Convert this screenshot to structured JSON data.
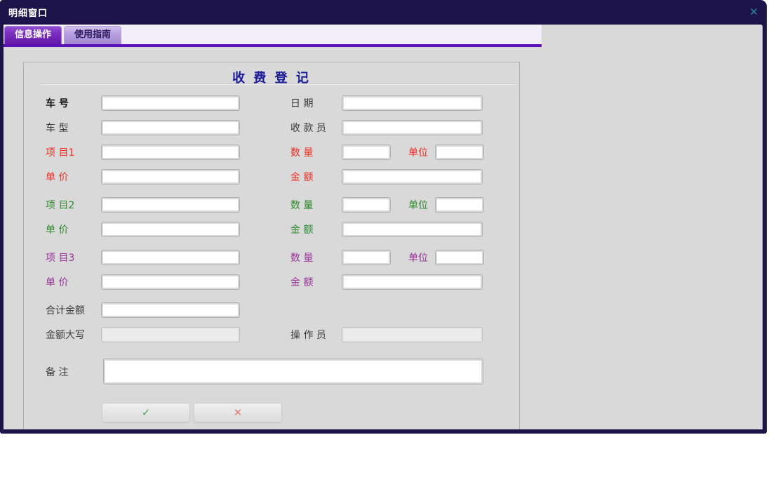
{
  "window": {
    "title": "明细窗口",
    "close_glyph": "✕"
  },
  "tabs": [
    {
      "label": "信息操作",
      "active": true
    },
    {
      "label": "使用指南",
      "active": false
    }
  ],
  "form": {
    "title": "收 费 登 记",
    "vehicle_no_label": "车 号",
    "date_label": "日 期",
    "vehicle_type_label": "车 型",
    "cashier_label": "收 款 员",
    "items": [
      {
        "label": "项 目1",
        "qty_label": "数 量",
        "unit_label": "单位",
        "price_label": "单 价",
        "amount_label": "金 额",
        "color": "#ee2f24"
      },
      {
        "label": "项 目2",
        "qty_label": "数 量",
        "unit_label": "单位",
        "price_label": "单 价",
        "amount_label": "金 额",
        "color": "#2e8b2e"
      },
      {
        "label": "项 目3",
        "qty_label": "数 量",
        "unit_label": "单位",
        "price_label": "单 价",
        "amount_label": "金 额",
        "color": "#993399"
      }
    ],
    "total_label": "合计金额",
    "amount_words_label": "金额大写",
    "operator_label": "操 作 员",
    "remarks_label": "备 注",
    "ok_glyph": "✓",
    "cancel_glyph": "✕",
    "values": {
      "vehicle_no": "",
      "date": "",
      "vehicle_type": "",
      "cashier": "",
      "item1": "",
      "item1_qty": "",
      "item1_unit": "",
      "item1_price": "",
      "item1_amount": "",
      "item2": "",
      "item2_qty": "",
      "item2_unit": "",
      "item2_price": "",
      "item2_amount": "",
      "item3": "",
      "item3_qty": "",
      "item3_unit": "",
      "item3_price": "",
      "item3_amount": "",
      "total": "",
      "amount_words": "",
      "operator": "",
      "remarks": ""
    }
  },
  "colors": {
    "titlebar_bg": "#1d1449",
    "tab_accent_line": "#5c10b8",
    "active_tab_purple": "#7b2fc0",
    "inactive_tab_purple": "#b89fe0",
    "content_bg": "#d9d9d9",
    "heading_blue": "#181899",
    "item1_red": "#ee2f24",
    "item2_green": "#2e8b2e",
    "item3_purple": "#993399",
    "close_teal": "#2d87a0",
    "ok_green": "#53a25e",
    "cancel_red": "#e07b73"
  }
}
